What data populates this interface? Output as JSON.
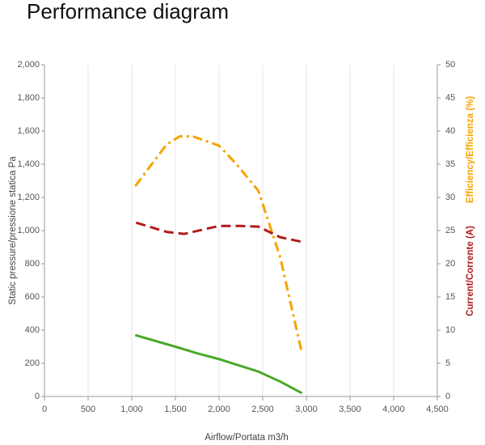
{
  "chart_data": {
    "type": "line",
    "title": "Performance diagram",
    "xlabel": "Airflow/Portata m3/h",
    "ylabel": "Static pressure/pressione statica Pa",
    "y2labels": [
      {
        "text": "Efficiency/Efficienza (%)",
        "color": "#f5a300"
      },
      {
        "text": "Current/Corrente (A)",
        "color": "#b01c1c"
      }
    ],
    "xlim": [
      0,
      4500
    ],
    "xticks": [
      0,
      500,
      {
        "value": 1000,
        "label": "1,000"
      },
      {
        "value": 1500,
        "label": "1,500"
      },
      {
        "value": 2000,
        "label": "2,000"
      },
      {
        "value": 2500,
        "label": "2,500"
      },
      {
        "value": 3000,
        "label": "3,000"
      },
      {
        "value": 3500,
        "label": "3,500"
      },
      {
        "value": 4000,
        "label": "4,000"
      },
      {
        "value": 4500,
        "label": "4,500"
      }
    ],
    "ylim": [
      0,
      2000
    ],
    "yticks": [
      0,
      200,
      400,
      600,
      800,
      {
        "value": 1000,
        "label": "1,000"
      },
      {
        "value": 1200,
        "label": "1,200"
      },
      {
        "value": 1400,
        "label": "1,400"
      },
      {
        "value": 1600,
        "label": "1,600"
      },
      {
        "value": 1800,
        "label": "1,800"
      },
      {
        "value": 2000,
        "label": "2,000"
      }
    ],
    "y2lim": [
      0,
      50
    ],
    "y2ticks": [
      0,
      5,
      10,
      15,
      20,
      25,
      30,
      35,
      40,
      45,
      50
    ],
    "grid": "x",
    "series": [
      {
        "color": "#4aa82a",
        "dash": "solid",
        "x": [
          1040,
          1500,
          1750,
          2000,
          2450,
          2700,
          2950
        ],
        "values": [
          370,
          300,
          260,
          225,
          150,
          90,
          20
        ]
      },
      {
        "color": "#f5a300",
        "dash": "dash-dot",
        "axis": "y2",
        "x": [
          1040,
          1400,
          1550,
          1700,
          2000,
          2200,
          2450,
          2700,
          2950
        ],
        "values": [
          31.7,
          38,
          39.2,
          39.2,
          37.8,
          35,
          31,
          21,
          6.5
        ]
      },
      {
        "color": "#b01c1c",
        "dash": "dash",
        "axis": "y2",
        "x": [
          1050,
          1400,
          1600,
          2000,
          2250,
          2450,
          2700,
          2950
        ],
        "values": [
          26.2,
          24.8,
          24.5,
          25.7,
          25.7,
          25.6,
          24,
          23.3
        ]
      }
    ]
  }
}
